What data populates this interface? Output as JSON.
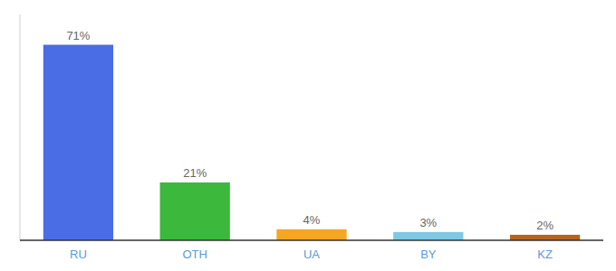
{
  "chart_data": {
    "type": "bar",
    "categories": [
      "RU",
      "OTH",
      "UA",
      "BY",
      "KZ"
    ],
    "values": [
      71,
      21,
      4,
      3,
      2
    ],
    "colors": [
      "#4a6de5",
      "#3cb83c",
      "#f5a623",
      "#7ec8e3",
      "#b5651d"
    ],
    "value_labels": [
      "71%",
      "21%",
      "4%",
      "3%",
      "2%"
    ],
    "data_labels": true,
    "ylim": [
      0,
      82
    ],
    "tick_labels": "x"
  }
}
